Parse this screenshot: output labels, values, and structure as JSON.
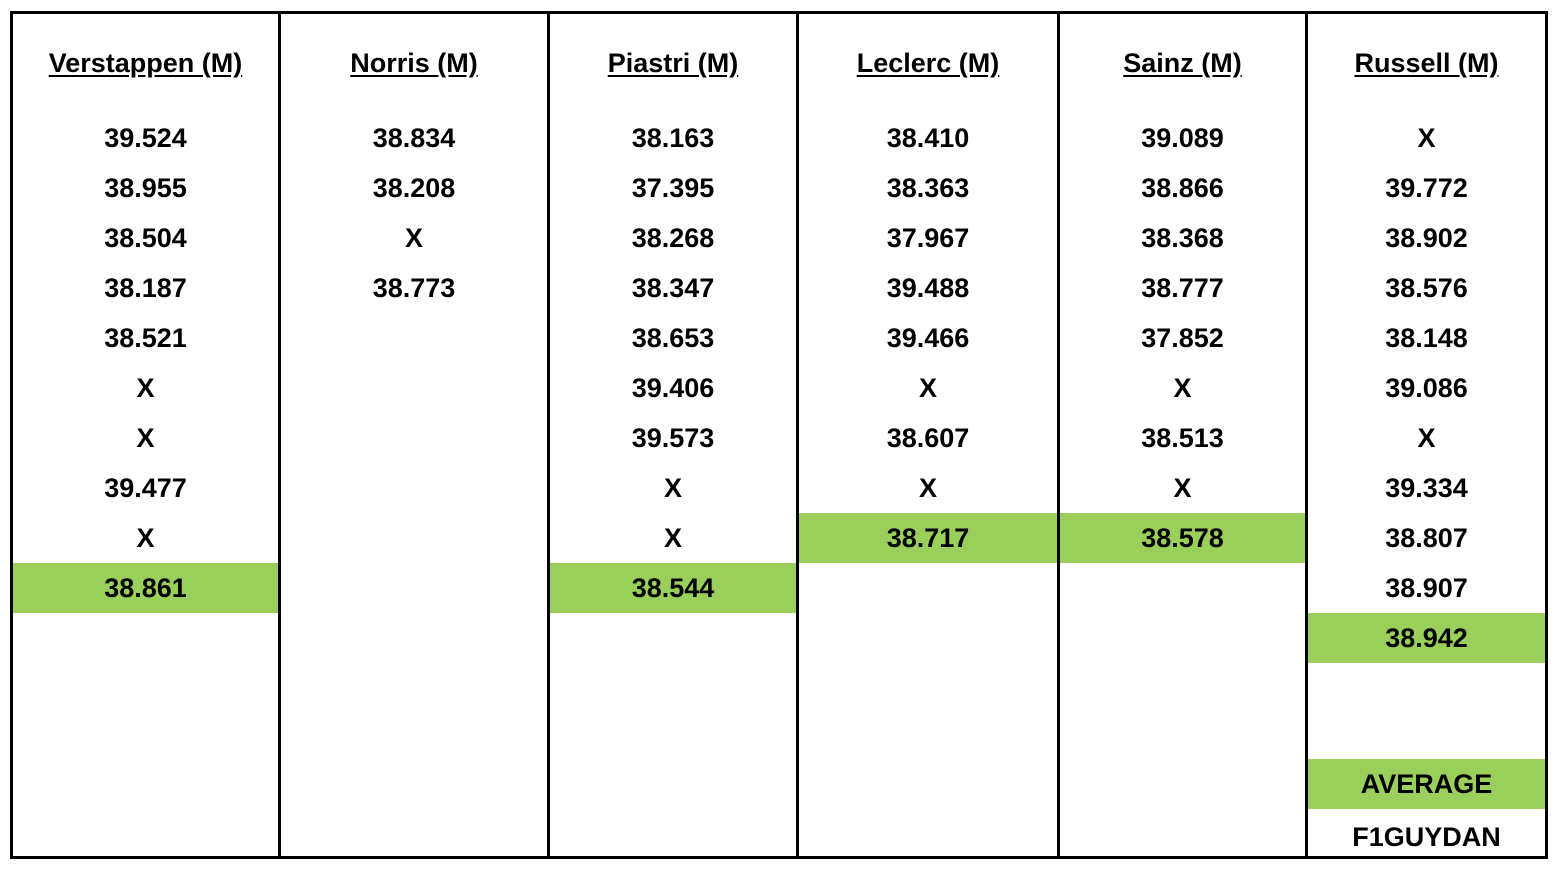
{
  "highlight_color": "#9bcf5c",
  "columns": [
    {
      "header": "Verstappen (M)",
      "values": [
        "39.524",
        "38.955",
        "38.504",
        "38.187",
        "38.521",
        "X",
        "X",
        "39.477",
        "X"
      ],
      "average": "38.861"
    },
    {
      "header": "Norris (M)",
      "values": [
        "38.834",
        "38.208",
        "X",
        "38.773"
      ],
      "average": ""
    },
    {
      "header": "Piastri (M)",
      "values": [
        "38.163",
        "37.395",
        "38.268",
        "38.347",
        "38.653",
        "39.406",
        "39.573",
        "X",
        "X"
      ],
      "average": "38.544"
    },
    {
      "header": "Leclerc (M)",
      "values": [
        "38.410",
        "38.363",
        "37.967",
        "39.488",
        "39.466",
        "X",
        "38.607",
        "X"
      ],
      "average": "38.717"
    },
    {
      "header": "Sainz (M)",
      "values": [
        "39.089",
        "38.866",
        "38.368",
        "38.777",
        "37.852",
        "X",
        "38.513",
        "X"
      ],
      "average": "38.578"
    },
    {
      "header": "Russell (M)",
      "values": [
        "X",
        "39.772",
        "38.902",
        "38.576",
        "38.148",
        "39.086",
        "X",
        "39.334",
        "38.807",
        "38.907"
      ],
      "average": "38.942"
    }
  ],
  "legend": {
    "average_label": "AVERAGE",
    "credit": "F1GUYDAN"
  }
}
